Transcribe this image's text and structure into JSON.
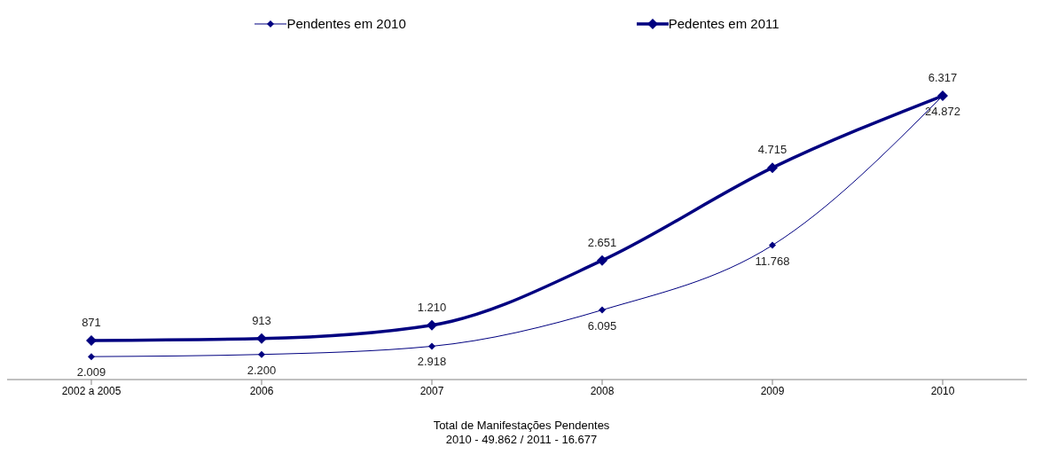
{
  "chart_data": {
    "type": "line",
    "categories": [
      "2002 a 2005",
      "2006",
      "2007",
      "2008",
      "2009",
      "2010"
    ],
    "series": [
      {
        "name": "Pendentes em 2010",
        "color": "#000080",
        "values": [
          2009,
          2200,
          2918,
          6095,
          11768,
          24872
        ],
        "value_labels": [
          "2.009",
          "2.200",
          "2.918",
          "6.095",
          "11.768",
          "24.872"
        ]
      },
      {
        "name": "Pedentes em 2011",
        "color": "#000080",
        "axis": "y2",
        "values": [
          871,
          913,
          1210,
          2651,
          4715,
          6317
        ],
        "value_labels": [
          "871",
          "913",
          "1.210",
          "2.651",
          "4.715",
          "6.317"
        ]
      }
    ],
    "tick_labels": "x",
    "marker": "diamond",
    "legend": "top",
    "grid": false,
    "xlabel": "Total de Manifestações Pendentes",
    "annotations": [
      "2010 - 49.862 / 2011 - 16.677"
    ]
  }
}
